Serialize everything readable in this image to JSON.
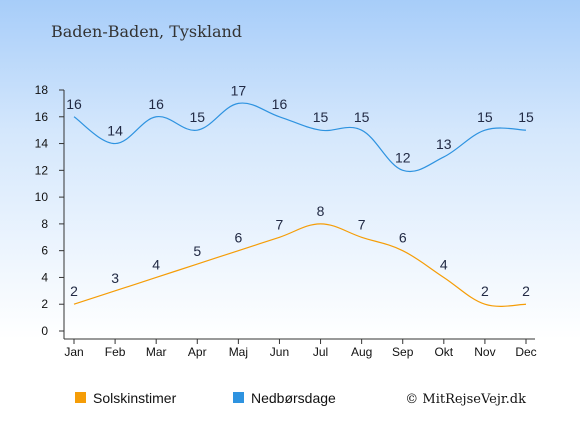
{
  "chart_data": {
    "type": "line",
    "title": "Baden-Baden, Tyskland",
    "categories": [
      "Jan",
      "Feb",
      "Mar",
      "Apr",
      "Maj",
      "Jun",
      "Jul",
      "Aug",
      "Sep",
      "Okt",
      "Nov",
      "Dec"
    ],
    "series": [
      {
        "name": "Solskinstimer",
        "color": "#f59d07",
        "values": [
          2,
          3,
          4,
          5,
          6,
          7,
          8,
          7,
          6,
          4,
          2,
          2
        ]
      },
      {
        "name": "Nedbørsdage",
        "color": "#2e93e0",
        "values": [
          16,
          14,
          16,
          15,
          17,
          16,
          15,
          15,
          12,
          13,
          15,
          15
        ]
      }
    ],
    "yticks": [
      0,
      2,
      4,
      6,
      8,
      10,
      12,
      14,
      16,
      18
    ],
    "ylim": [
      0,
      18
    ],
    "grid": false,
    "legend_position": "bottom-left"
  },
  "credit": "© MitRejseVejr.dk"
}
